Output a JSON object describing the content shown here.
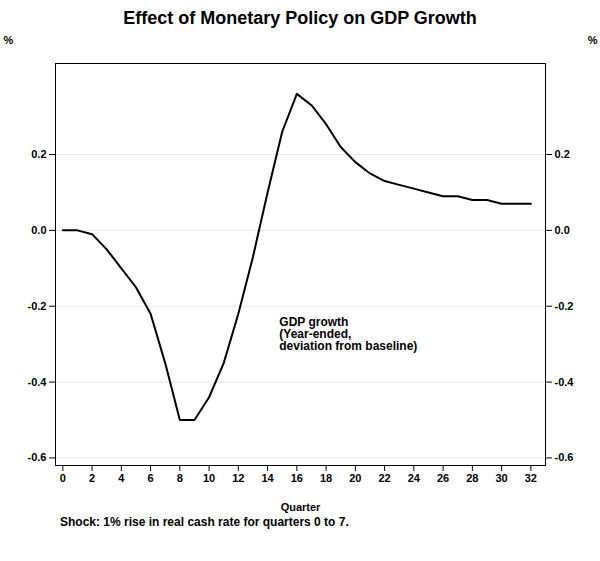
{
  "chart_data": {
    "type": "line",
    "title": "Effect of Monetary Policy on GDP Growth",
    "xlabel": "Quarter",
    "ylabel": "%",
    "y2label": "%",
    "footnote": "Shock: 1% rise in real cash rate for quarters 0 to 7.",
    "annotations": [
      {
        "text": "GDP growth\n(Year-ended,\ndeviation from baseline)",
        "x": 14.8,
        "y": -0.23
      }
    ],
    "x": [
      0,
      1,
      2,
      3,
      4,
      5,
      6,
      7,
      8,
      9,
      10,
      11,
      12,
      13,
      14,
      15,
      16,
      17,
      18,
      19,
      20,
      21,
      22,
      23,
      24,
      25,
      26,
      27,
      28,
      29,
      30,
      31,
      32
    ],
    "values": [
      0.0,
      0.0,
      -0.01,
      -0.05,
      -0.1,
      -0.15,
      -0.22,
      -0.35,
      -0.5,
      -0.5,
      -0.44,
      -0.35,
      -0.22,
      -0.07,
      0.1,
      0.26,
      0.36,
      0.33,
      0.28,
      0.22,
      0.18,
      0.15,
      0.13,
      0.12,
      0.11,
      0.1,
      0.09,
      0.09,
      0.08,
      0.08,
      0.07,
      0.07,
      0.07
    ],
    "color": "#000000",
    "xlim": [
      -0.5,
      33.0
    ],
    "ylim": [
      -0.62,
      0.44
    ],
    "xticks": [
      0,
      2,
      4,
      6,
      8,
      10,
      12,
      14,
      16,
      18,
      20,
      22,
      24,
      26,
      28,
      30,
      32
    ],
    "yticks": [
      -0.6,
      -0.4,
      -0.2,
      {
        "value": 0.0,
        "label": "0.0"
      },
      0.2
    ],
    "y2lim": [
      -0.62,
      0.44
    ],
    "y2ticks": [
      -0.6,
      -0.4,
      -0.2,
      {
        "value": 0.0,
        "label": "0.0"
      },
      0.2
    ],
    "grid": true
  }
}
